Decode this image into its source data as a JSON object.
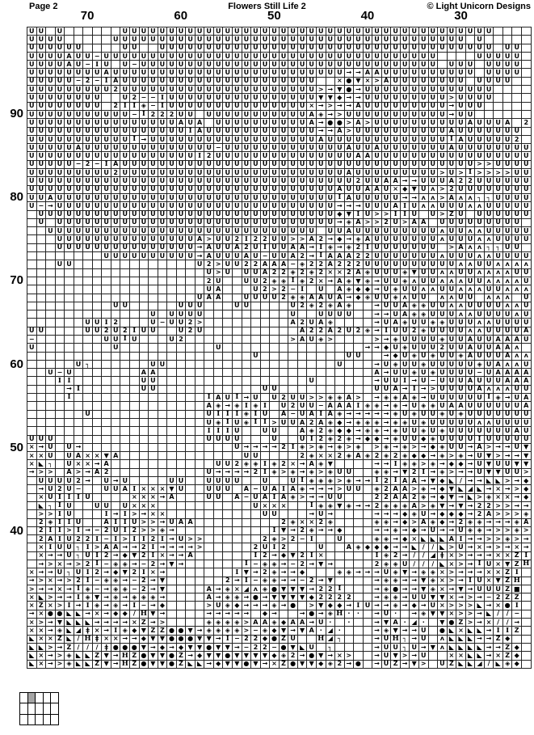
{
  "header": {
    "page_label": "Page 2",
    "title": "Flowers Still Life 2",
    "copyright": "© Light Unicorn Designs"
  },
  "axis": {
    "column_labels": [
      {
        "text": "70",
        "col_index": 6
      },
      {
        "text": "60",
        "col_index": 16
      },
      {
        "text": "50",
        "col_index": 26
      },
      {
        "text": "40",
        "col_index": 36
      },
      {
        "text": "30",
        "col_index": 46
      }
    ],
    "row_labels": [
      {
        "text": "90",
        "row_index": 10
      },
      {
        "text": "80",
        "row_index": 20
      },
      {
        "text": "70",
        "row_index": 30
      },
      {
        "text": "60",
        "row_index": 40
      },
      {
        "text": "50",
        "row_index": 50
      },
      {
        "text": "40",
        "row_index": 60
      }
    ]
  },
  "grid": {
    "cols": 54,
    "rows": 77,
    "legend": {
      ".": "",
      "U": "U",
      "A": "A",
      "2": "2",
      "Z": "Z",
      "H": "H",
      "X": "×",
      ">": ">",
      "/": "/",
      "-": "−",
      "I": "I",
      "D": "◈",
      "F": "◆",
      "O": "●",
      "V": "▼",
      "R": "→",
      "L": "◣",
      "J": "◢",
      "C": "ʌ",
      "7": "┐",
      "Q": "■",
      "P": "ǂ",
      "o": "·"
    },
    "pattern_rows": [
      "UU.U......UUUUUUUUUUUUUUUUUUUUUUUUUUUUUUUUUUUUUUUU....",
      "UUUU.....UUUUUUUUUUUUUUUUUUUUUUUUUUUUUUUUUUUUUU.U.....",
      "UUUUUU....UU..UUUUUUUUUUUUUUUUUUUUUUUUUUUUUUUUUUUU.UU.",
      "UUUUAUU-UUUUUUUUUUUUUUUUUUUUUUUUUUUUUUUUUUUU....UUUUU.",
      "UUUUAU-IU.U-UUUUUUUUUUUUUUUUUUUUUUUUUUUUUUUU.UUU.UUUU.",
      "UUUUUUUUAUUUUUUUUUUUUUUUUUUUUUUUUURRAAUUUUUUUUUU.UUUU.",
      "UUUUU-2-IAUUUUUUUUUUUUUUUUUUUUU..XOVX>AUUUUUUUU.UUUU..",
      "UUUUUUUUU2UUUUUUUUUUUUUUUUUUUUU>RVORUUUUUUUUUUUUUU....",
      "UUUUUUUU..U2--IUUUUUUUUUUUUUUUUVVFRRUUUUUUUUU>UUUU....",
      "UUUUUUUU.2IID-IUUUUUUUUUUUUUUUXR>RRAUUUUUUUUURUUU.....",
      "UUUUUUUUUUU-I222UU.UUUUUUUUUUUADR>UUUUUUUUUUURUU......",
      "UUUUUUUUUUUUUUUUAUA.UUUUUUUUUUAROO>A>UUUUUUUUUUAUUUA.2",
      "UUUUUUUUUUUUUUUUUIAUUUUUUUUUUUURRA>UUUUUUUUUUAUUUUUUU.",
      "UUUUUUUUUUUIRUUUUUUUUUUUUUUUUUUAUUUUUUUUUUUUUIAUUUUU2.",
      "UUUUUAUUUUUUUUUUUUUU-UUUUUUUUUUUUUAUUAUUUUUUUAUUUUUUUU",
      "UUUUUUUUUUUUUUUUUUI2UUUUUUUUUUUUUUUAAUUUUUUUUUUUUUUUUU",
      "UUUUU-2-IAUUUUUUUUUUUUUUUUUUUUUUUUUUUUUUUUUUUUUU>>UUUU",
      "UUUUUUUUU2UUUUUUUUUUUUUUUUUUUUUUUUAUUUUUUUUU>U>I>>>>UU",
      "UUUUUUUUUUUUUUUUUUUUUUUUUUUUUUUUUUU2UUAARRUUUA22UUUUUU",
      "UUUUUUUUUUUUUUUUUUUUUUUUUUUUUUUUUAUUAAUXFVUC>2UUUUUUUU",
      "UUAUUUUUUUUUUUUUUUUUUUUUUUUUUUUUUIAUUUUURRCC>ACC77UUUU",
      "U-RUUUUUUUUUUUUUUUUUUUUUUUUUUUUUURRRUUUAIUCCUUUCCUUUUU",
      ".UUUUUUUUUUUUUUUUUUUUUUUUUUUUUUUUFVIU>>IIU.U>ZU.UUUUUU",
      ".U.UUUUUUUUUUUUUUUUUUUUUUUUUUUUUURDA>>2U>AA.UUUUUUUUU.",
      "..UUUUUUUUUUUUUUUUUUUUUUUUUUUUU.UUAUUUUUUUUUCUUCCUUUUU",
      "...UUUUUUUUUUUUUUUA>UU2I22UU>>A2RFRDAUUUUUUUCUUUCCUUUU",
      "...UUUUUUUUUUUUUUURAUUA2UIUUAARIDRD2IUUUUUUU.>ACC77UU.",
      "........UUUUUUUUUURAUUUAU-UUA2RIAAA22UUUUUUUCUUUCCUUUU",
      "...UU.............U2>UU22AAA-D22A222UUUUUUUUUUCCUUCCCC",
      "...................U>U.UUA22D2D2XX2ADUUUDVUUCCUUCCCCUU",
      "...................2U..UU2DDID2XRADVDRUUDCUUCCCUUCCCCU",
      "...................UA...U2>2-I.U.ADFFRUDUUCCUUCCCUUCCC",
      "..................UAA..UUUU2DDAAUARFDUUDCUU.CCUU.CCC.U",
      ".........UU.....UUU...UU....U2D2DAD..RUUADDUUCCUUUUCCU",
      ".............U.UUUU.........U..UUUU..RRUADDUUUCCUUUUCU",
      "......UUI2...U-UU2>.........A2UAD....RUADUUDDUUUCCUUUU",
      "UU....UU2U2IUU..U2U..........A22A2U2DRIUU2DUUUUCCUUUUA",
      "-.......UUIU...U2...........>AUD>....>RDUUUUDUUAUUAAAU",
      "U........U..........U...............RRFUDUUU2UUAUUAAC",
      "........................U.........UU..RFUDUDUUDAUUUACCC",
      ".....U7......UU..................U...RUDUUDUUUUUDUACCU",
      "..U-U.......AA.......................ARUUDUDUUUU-UAAAA",
      "...II.......UU................U......RUUIRU-UUUAUUUAAA",
      "....RI......UU...........UU..........UUARIR>UUUUACCCUU",
      "....I..............IAUIRU.U2UU>>DDA>.RDDADRUUUUUUIDRUA",
      "...................ADRDIDI.U2UU-AAAIDDRDRUDDUAAUUUUUUA",
      "......U............UIIIDIU.A-UAIADRRRRRDUDUUDUDUUUUUUU",
      "...................UDIUDII>UUA2ADFRDDDRDDUDUUUUUCCUUUU",
      "...................IIIU..UU..AD2DFFRDDRDUUDUDUUUUUUUAU",
      "UUU................UUUU...U..UI2D2DRFFRDUUFDUUUUIUUUUU",
      "XRU.UR................URRRR2ID>DRD>D.>DRD>RFDUURA>RRUV",
      "XXU.UAXXVA.............UU....2DXX2DAD2D2DFFRD>DRUV>RRV",
      "XL7.UXXRA...........UU2DDID2XRADV....RRIDD>DRFFRUVUUVV",
      "R>>.A>RA2..........URRRR2ID>DRD>DUU..DDRV2IRD>RRUVVUU>",
      ".UUUU2R.URU....UU..UUUU..U..UIDDD>DRRI2IAARVFL/RRLL>RF",
      ".RU2U-..UUAIXXXVU..UUU.A-UAIADRRR>UU.D2AA>DRFVLJLRXR>F",
      ".XUIIIU....XXXRA...UU.A-UAIAD>RRUU...22AA2DRFVRL>DXXRF",
      ".L7IU..UU.UXXX..........UXXX..IDDVDRR2DDDA>DVRVR22>>RR",
      ".>>IU...IRI>RXX..........UU...RUR....RRRFDURFFFR2A>>>D",
      ".2DIIU..AIIU>>RUAA.........2DXX2D....DDRF>ADFR2DDRRRDA",
      ".2II>IR-2UI2>>DR..........IVR2DRRF...RRDRFRURRUDDR>>D>",
      ".2AIU22I-I>II2IRU>>......2D>2-I..U...DDRFXLLLAIRR>>D>R",
      ".XIUU7I>AARR2IRRRR>.....2UI2...U..ADFFFRRL//L>URXR>RXR",
      ".XRRU7UI2RFV2IXRRA......I2RFV2IX.....ID2R//JPX>RRRXXZI",
      ".R>XR>2I-DDR-2RVR......I-DDR-2RVR....2DDU///LX>RIUXVZH",
      "XRRU7UI2RFV2IXR.......IVR2DRRF...DDRRRUDVRDDX>RRRXXZI.",
      "R>XR>2I-DDR-2RV......2RI-DDRR-2RV....RDDRRVDX>RIUXVZH.",
      ">RRXRID-RDD-2RV....ARDXJCDOVVVR22I...RDORRVDXRVRUUUZQ.",
      "XL>RRIDVRDRDDDR....ARDDRORVVVVF2222..RDDRUUVVXR>R-2ZZ.",
      "XZX>IRIDRDRI-RF....>UDFRRRDRO.>VFFRIURRDRFRUX>>>LRXOI.",
      "RXOOLLRXRFF/HVR....RRRRR.FR..RORDHoo.RUo.RDVVX>>RL//-.",
      "X>RVLLLRRRRXZR>....DDDD>AADFAARUo.o..RVAoJo.VOZ>RX//R.",
      "XXRDLJPXRIDFVZZOOVRDDDD>-DFVRVAoJo...RDVRRU.OLXLLRIIZ.",
      "LXXZL/HPXXRRFVVOOOVVRI-22FOZU..HJ7...RUH7RU.CLLLRRZF..",
      "LL>RZ///POOOVRFRFVVOVVR-22-OVLU.7....RUU7URVCLLLLRRZF.",
      "LXR>DLLZVRHZOVVOZRFVVOVVVVFD2ROVRX>..RUV>RU..XXLLRXZF.",
      "LXR>DLLZVRHZOVVOZLLRFVVOVRXZOVVFD2RO.RUZRV>.UZLLJ/LDF."
    ]
  },
  "minimap": {
    "cols": 5,
    "rows": 3,
    "highlighted": {
      "row": 0,
      "col": 1
    },
    "fill_color": "#a6a6a6"
  },
  "colors": {
    "background": "#ffffff",
    "grid_line": "#242424",
    "symbol": "#000000"
  }
}
